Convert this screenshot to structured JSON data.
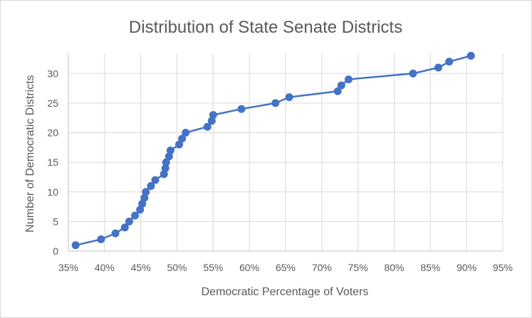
{
  "chart_data": {
    "type": "scatter",
    "title": "Distribution of State Senate Districts",
    "xlabel": "Democratic Percentage of Voters",
    "ylabel": "Number of Democratic Districts",
    "xlim": [
      0.35,
      0.95
    ],
    "ylim": [
      0,
      33
    ],
    "x_ticks": [
      "35%",
      "40%",
      "45%",
      "50%",
      "55%",
      "60%",
      "65%",
      "70%",
      "75%",
      "80%",
      "85%",
      "90%",
      "95%"
    ],
    "x_tick_values": [
      0.35,
      0.4,
      0.45,
      0.5,
      0.55,
      0.6,
      0.65,
      0.7,
      0.75,
      0.8,
      0.85,
      0.9,
      0.95
    ],
    "y_ticks": [
      "0",
      "5",
      "10",
      "15",
      "20",
      "25",
      "30"
    ],
    "y_tick_values": [
      0,
      5,
      10,
      15,
      20,
      25,
      30
    ],
    "grid": "vertical and horizontal major gridlines",
    "legend": "none",
    "color": "#4472c4",
    "series": [
      {
        "x": [
          0.36,
          0.395,
          0.415,
          0.428,
          0.434,
          0.442,
          0.449,
          0.452,
          0.455,
          0.457,
          0.464,
          0.47,
          0.482,
          0.484,
          0.485,
          0.489,
          0.491,
          0.503,
          0.507,
          0.512,
          0.542,
          0.548,
          0.55,
          0.589,
          0.636,
          0.655,
          0.722,
          0.727,
          0.737,
          0.826,
          0.861,
          0.876,
          0.906
        ],
        "y": [
          1,
          2,
          3,
          4,
          5,
          6,
          7,
          8,
          9,
          10,
          11,
          12,
          13,
          14,
          15,
          16,
          17,
          18,
          19,
          20,
          21,
          22,
          23,
          24,
          25,
          26,
          27,
          28,
          29,
          30,
          31,
          32,
          33
        ]
      }
    ]
  }
}
